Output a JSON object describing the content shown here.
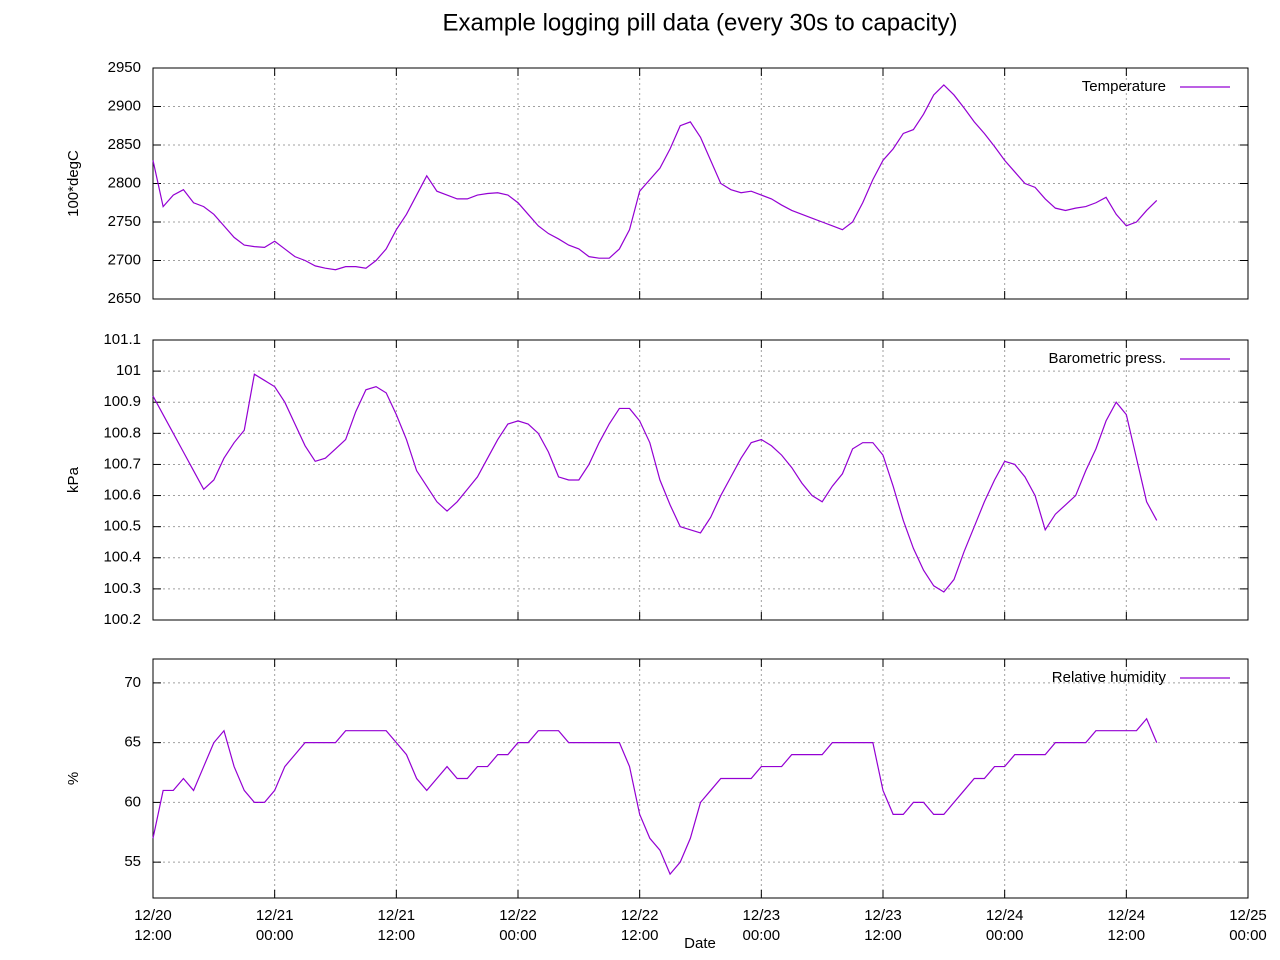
{
  "title": "Example logging pill data (every 30s to capacity)",
  "chart_data": [
    {
      "type": "line",
      "ylabel": "100*degC",
      "legend": "top right",
      "grid": true,
      "xlim": [
        "12/20 12:00",
        "12/25 00:00"
      ],
      "xticks": [
        "12/20 12:00",
        "12/21 00:00",
        "12/21 12:00",
        "12/22 00:00",
        "12/22 12:00",
        "12/23 00:00",
        "12/23 12:00",
        "12/24 00:00",
        "12/24 12:00",
        "12/25 00:00"
      ],
      "ylim": [
        2650,
        2950
      ],
      "yticks": [
        2650,
        2700,
        2750,
        2800,
        2850,
        2900,
        2950
      ],
      "x": [
        "12/20 12:00",
        "12/20 13:00",
        "12/20 14:00",
        "12/20 15:00",
        "12/20 16:00",
        "12/20 17:00",
        "12/20 18:00",
        "12/20 19:00",
        "12/20 20:00",
        "12/20 21:00",
        "12/20 22:00",
        "12/20 23:00",
        "12/21 00:00",
        "12/21 01:00",
        "12/21 02:00",
        "12/21 03:00",
        "12/21 04:00",
        "12/21 05:00",
        "12/21 06:00",
        "12/21 07:00",
        "12/21 08:00",
        "12/21 09:00",
        "12/21 10:00",
        "12/21 11:00",
        "12/21 12:00",
        "12/21 13:00",
        "12/21 14:00",
        "12/21 15:00",
        "12/21 16:00",
        "12/21 17:00",
        "12/21 18:00",
        "12/21 19:00",
        "12/21 20:00",
        "12/21 21:00",
        "12/21 22:00",
        "12/21 23:00",
        "12/22 00:00",
        "12/22 01:00",
        "12/22 02:00",
        "12/22 03:00",
        "12/22 04:00",
        "12/22 05:00",
        "12/22 06:00",
        "12/22 07:00",
        "12/22 08:00",
        "12/22 09:00",
        "12/22 10:00",
        "12/22 11:00",
        "12/22 12:00",
        "12/22 13:00",
        "12/22 14:00",
        "12/22 15:00",
        "12/22 16:00",
        "12/22 17:00",
        "12/22 18:00",
        "12/22 19:00",
        "12/22 20:00",
        "12/22 21:00",
        "12/22 22:00",
        "12/22 23:00",
        "12/23 00:00",
        "12/23 01:00",
        "12/23 02:00",
        "12/23 03:00",
        "12/23 04:00",
        "12/23 05:00",
        "12/23 06:00",
        "12/23 07:00",
        "12/23 08:00",
        "12/23 09:00",
        "12/23 10:00",
        "12/23 11:00",
        "12/23 12:00",
        "12/23 13:00",
        "12/23 14:00",
        "12/23 15:00",
        "12/23 16:00",
        "12/23 17:00",
        "12/23 18:00",
        "12/23 19:00",
        "12/23 20:00",
        "12/23 21:00",
        "12/23 22:00",
        "12/23 23:00",
        "12/24 00:00",
        "12/24 01:00",
        "12/24 02:00",
        "12/24 03:00",
        "12/24 04:00",
        "12/24 05:00",
        "12/24 06:00",
        "12/24 07:00",
        "12/24 08:00",
        "12/24 09:00",
        "12/24 10:00",
        "12/24 11:00",
        "12/24 12:00",
        "12/24 13:00",
        "12/24 14:00",
        "12/24 15:00"
      ],
      "series": [
        {
          "name": "Temperature",
          "color": "#9400d3",
          "values": [
            2830,
            2770,
            2785,
            2792,
            2775,
            2770,
            2760,
            2745,
            2730,
            2720,
            2718,
            2717,
            2725,
            2715,
            2705,
            2700,
            2693,
            2690,
            2688,
            2692,
            2692,
            2690,
            2700,
            2715,
            2740,
            2760,
            2785,
            2810,
            2790,
            2785,
            2780,
            2780,
            2785,
            2787,
            2788,
            2785,
            2775,
            2760,
            2745,
            2735,
            2728,
            2720,
            2715,
            2705,
            2703,
            2703,
            2715,
            2740,
            2790,
            2805,
            2820,
            2845,
            2875,
            2880,
            2860,
            2830,
            2800,
            2792,
            2788,
            2790,
            2785,
            2780,
            2772,
            2765,
            2760,
            2755,
            2750,
            2745,
            2740,
            2750,
            2775,
            2805,
            2830,
            2845,
            2865,
            2870,
            2890,
            2915,
            2928,
            2915,
            2898,
            2880,
            2865,
            2848,
            2830,
            2815,
            2800,
            2795,
            2780,
            2768,
            2765,
            2768,
            2770,
            2775,
            2782,
            2760,
            2745,
            2750,
            2765,
            2778
          ]
        }
      ]
    },
    {
      "type": "line",
      "ylabel": "kPa",
      "legend": "top right",
      "grid": true,
      "xlim": [
        "12/20 12:00",
        "12/25 00:00"
      ],
      "xticks": [
        "12/20 12:00",
        "12/21 00:00",
        "12/21 12:00",
        "12/22 00:00",
        "12/22 12:00",
        "12/23 00:00",
        "12/23 12:00",
        "12/24 00:00",
        "12/24 12:00",
        "12/25 00:00"
      ],
      "ylim": [
        100.2,
        101.1
      ],
      "yticks": [
        100.2,
        100.3,
        100.4,
        100.5,
        100.6,
        100.7,
        100.8,
        100.9,
        101,
        101.1
      ],
      "x": [
        "12/20 12:00",
        "12/20 13:00",
        "12/20 14:00",
        "12/20 15:00",
        "12/20 16:00",
        "12/20 17:00",
        "12/20 18:00",
        "12/20 19:00",
        "12/20 20:00",
        "12/20 21:00",
        "12/20 22:00",
        "12/20 23:00",
        "12/21 00:00",
        "12/21 01:00",
        "12/21 02:00",
        "12/21 03:00",
        "12/21 04:00",
        "12/21 05:00",
        "12/21 06:00",
        "12/21 07:00",
        "12/21 08:00",
        "12/21 09:00",
        "12/21 10:00",
        "12/21 11:00",
        "12/21 12:00",
        "12/21 13:00",
        "12/21 14:00",
        "12/21 15:00",
        "12/21 16:00",
        "12/21 17:00",
        "12/21 18:00",
        "12/21 19:00",
        "12/21 20:00",
        "12/21 21:00",
        "12/21 22:00",
        "12/21 23:00",
        "12/22 00:00",
        "12/22 01:00",
        "12/22 02:00",
        "12/22 03:00",
        "12/22 04:00",
        "12/22 05:00",
        "12/22 06:00",
        "12/22 07:00",
        "12/22 08:00",
        "12/22 09:00",
        "12/22 10:00",
        "12/22 11:00",
        "12/22 12:00",
        "12/22 13:00",
        "12/22 14:00",
        "12/22 15:00",
        "12/22 16:00",
        "12/22 17:00",
        "12/22 18:00",
        "12/22 19:00",
        "12/22 20:00",
        "12/22 21:00",
        "12/22 22:00",
        "12/22 23:00",
        "12/23 00:00",
        "12/23 01:00",
        "12/23 02:00",
        "12/23 03:00",
        "12/23 04:00",
        "12/23 05:00",
        "12/23 06:00",
        "12/23 07:00",
        "12/23 08:00",
        "12/23 09:00",
        "12/23 10:00",
        "12/23 11:00",
        "12/23 12:00",
        "12/23 13:00",
        "12/23 14:00",
        "12/23 15:00",
        "12/23 16:00",
        "12/23 17:00",
        "12/23 18:00",
        "12/23 19:00",
        "12/23 20:00",
        "12/23 21:00",
        "12/23 22:00",
        "12/23 23:00",
        "12/24 00:00",
        "12/24 01:00",
        "12/24 02:00",
        "12/24 03:00",
        "12/24 04:00",
        "12/24 05:00",
        "12/24 06:00",
        "12/24 07:00",
        "12/24 08:00",
        "12/24 09:00",
        "12/24 10:00",
        "12/24 11:00",
        "12/24 12:00",
        "12/24 13:00",
        "12/24 14:00",
        "12/24 15:00"
      ],
      "series": [
        {
          "name": "Barometric press.",
          "color": "#9400d3",
          "values": [
            100.92,
            100.86,
            100.8,
            100.74,
            100.68,
            100.62,
            100.65,
            100.72,
            100.77,
            100.81,
            100.99,
            100.97,
            100.95,
            100.9,
            100.83,
            100.76,
            100.71,
            100.72,
            100.75,
            100.78,
            100.87,
            100.94,
            100.95,
            100.93,
            100.86,
            100.78,
            100.68,
            100.63,
            100.58,
            100.55,
            100.58,
            100.62,
            100.66,
            100.72,
            100.78,
            100.83,
            100.84,
            100.83,
            100.8,
            100.74,
            100.66,
            100.65,
            100.65,
            100.7,
            100.77,
            100.83,
            100.88,
            100.88,
            100.84,
            100.77,
            100.65,
            100.57,
            100.5,
            100.49,
            100.48,
            100.53,
            100.6,
            100.66,
            100.72,
            100.77,
            100.78,
            100.76,
            100.73,
            100.69,
            100.64,
            100.6,
            100.58,
            100.63,
            100.67,
            100.75,
            100.77,
            100.77,
            100.73,
            100.63,
            100.52,
            100.43,
            100.36,
            100.31,
            100.29,
            100.33,
            100.42,
            100.5,
            100.58,
            100.65,
            100.71,
            100.7,
            100.66,
            100.6,
            100.49,
            100.54,
            100.57,
            100.6,
            100.68,
            100.75,
            100.84,
            100.9,
            100.86,
            100.72,
            100.58,
            100.52
          ]
        }
      ]
    },
    {
      "type": "line",
      "ylabel": "%",
      "xlabel": "Date",
      "legend": "top right",
      "grid": true,
      "xlim": [
        "12/20 12:00",
        "12/25 00:00"
      ],
      "xticks": [
        "12/20 12:00",
        "12/21 00:00",
        "12/21 12:00",
        "12/22 00:00",
        "12/22 12:00",
        "12/23 00:00",
        "12/23 12:00",
        "12/24 00:00",
        "12/24 12:00",
        "12/25 00:00"
      ],
      "ylim": [
        52,
        72
      ],
      "yticks": [
        55,
        60,
        65,
        70
      ],
      "x": [
        "12/20 12:00",
        "12/20 13:00",
        "12/20 14:00",
        "12/20 15:00",
        "12/20 16:00",
        "12/20 17:00",
        "12/20 18:00",
        "12/20 19:00",
        "12/20 20:00",
        "12/20 21:00",
        "12/20 22:00",
        "12/20 23:00",
        "12/21 00:00",
        "12/21 01:00",
        "12/21 02:00",
        "12/21 03:00",
        "12/21 04:00",
        "12/21 05:00",
        "12/21 06:00",
        "12/21 07:00",
        "12/21 08:00",
        "12/21 09:00",
        "12/21 10:00",
        "12/21 11:00",
        "12/21 12:00",
        "12/21 13:00",
        "12/21 14:00",
        "12/21 15:00",
        "12/21 16:00",
        "12/21 17:00",
        "12/21 18:00",
        "12/21 19:00",
        "12/21 20:00",
        "12/21 21:00",
        "12/21 22:00",
        "12/21 23:00",
        "12/22 00:00",
        "12/22 01:00",
        "12/22 02:00",
        "12/22 03:00",
        "12/22 04:00",
        "12/22 05:00",
        "12/22 06:00",
        "12/22 07:00",
        "12/22 08:00",
        "12/22 09:00",
        "12/22 10:00",
        "12/22 11:00",
        "12/22 12:00",
        "12/22 13:00",
        "12/22 14:00",
        "12/22 15:00",
        "12/22 16:00",
        "12/22 17:00",
        "12/22 18:00",
        "12/22 19:00",
        "12/22 20:00",
        "12/22 21:00",
        "12/22 22:00",
        "12/22 23:00",
        "12/23 00:00",
        "12/23 01:00",
        "12/23 02:00",
        "12/23 03:00",
        "12/23 04:00",
        "12/23 05:00",
        "12/23 06:00",
        "12/23 07:00",
        "12/23 08:00",
        "12/23 09:00",
        "12/23 10:00",
        "12/23 11:00",
        "12/23 12:00",
        "12/23 13:00",
        "12/23 14:00",
        "12/23 15:00",
        "12/23 16:00",
        "12/23 17:00",
        "12/23 18:00",
        "12/23 19:00",
        "12/23 20:00",
        "12/23 21:00",
        "12/23 22:00",
        "12/23 23:00",
        "12/24 00:00",
        "12/24 01:00",
        "12/24 02:00",
        "12/24 03:00",
        "12/24 04:00",
        "12/24 05:00",
        "12/24 06:00",
        "12/24 07:00",
        "12/24 08:00",
        "12/24 09:00",
        "12/24 10:00",
        "12/24 11:00",
        "12/24 12:00",
        "12/24 13:00",
        "12/24 14:00",
        "12/24 15:00"
      ],
      "series": [
        {
          "name": "Relative humidity",
          "color": "#9400d3",
          "values": [
            57,
            61,
            61,
            62,
            61,
            63,
            65,
            66,
            63,
            61,
            60,
            60,
            61,
            63,
            64,
            65,
            65,
            65,
            65,
            66,
            66,
            66,
            66,
            66,
            65,
            64,
            62,
            61,
            62,
            63,
            62,
            62,
            63,
            63,
            64,
            64,
            65,
            65,
            66,
            66,
            66,
            65,
            65,
            65,
            65,
            65,
            65,
            63,
            59,
            57,
            56,
            54,
            55,
            57,
            60,
            61,
            62,
            62,
            62,
            62,
            63,
            63,
            63,
            64,
            64,
            64,
            64,
            65,
            65,
            65,
            65,
            65,
            61,
            59,
            59,
            60,
            60,
            59,
            59,
            60,
            61,
            62,
            62,
            63,
            63,
            64,
            64,
            64,
            64,
            65,
            65,
            65,
            65,
            66,
            66,
            66,
            66,
            66,
            67,
            65
          ]
        }
      ]
    }
  ]
}
